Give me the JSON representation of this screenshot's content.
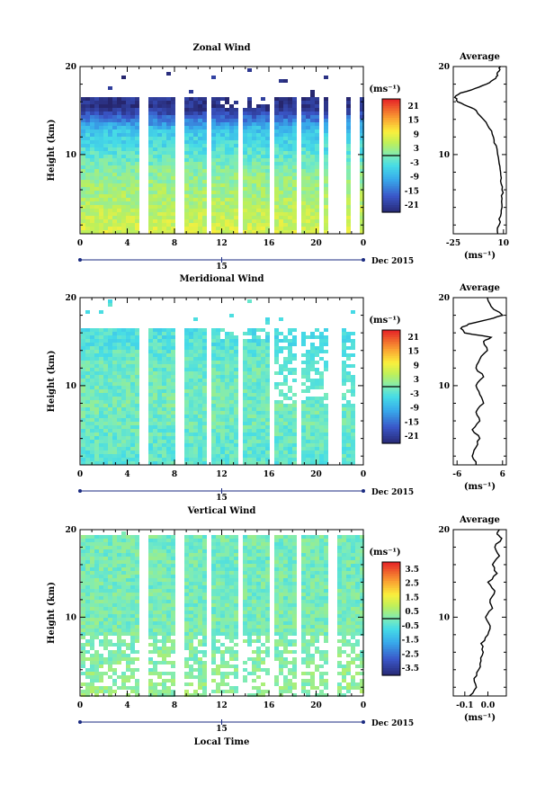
{
  "chart_data": [
    {
      "type": "heatmap",
      "title": "Zonal Wind",
      "ylabel": "Height (km)",
      "xticks": [
        "0",
        "4",
        "8",
        "12",
        "16",
        "20",
        "0"
      ],
      "date_tick": "15",
      "date_label": "Dec 2015",
      "ylim": [
        1,
        20
      ],
      "yticks": [
        "10",
        "20"
      ],
      "colorbar": {
        "unit": "(ms⁻¹)",
        "ticks": [
          "21",
          "15",
          "9",
          "3",
          "-3",
          "-9",
          "-15",
          "-21"
        ],
        "range": [
          -24,
          24
        ]
      },
      "profile": {
        "title": "Average",
        "xlabel": "(ms⁻¹)",
        "xticks": [
          "-25",
          "10"
        ],
        "xlim": [
          -25,
          12
        ],
        "x": [
          6,
          7,
          8,
          9,
          9,
          9,
          8,
          8,
          7,
          6,
          5,
          3,
          0,
          -4,
          -9,
          -15,
          -22,
          -24,
          -20,
          -10,
          -2,
          3,
          6,
          7,
          8
        ],
        "y": [
          1,
          2,
          3,
          4,
          5,
          6,
          7,
          8,
          9,
          10,
          11,
          12,
          13,
          14,
          15,
          15.5,
          16,
          16.5,
          17,
          17.5,
          18,
          18.5,
          19,
          19.5,
          20
        ]
      },
      "field": {
        "low": 8,
        "mid": 2,
        "jet": -22,
        "top": 4
      }
    },
    {
      "type": "heatmap",
      "title": "Meridional Wind",
      "ylabel": "Height (km)",
      "xticks": [
        "0",
        "4",
        "8",
        "12",
        "16",
        "20",
        "0"
      ],
      "date_tick": "15",
      "date_label": "Dec 2015",
      "ylim": [
        1,
        20
      ],
      "yticks": [
        "10",
        "20"
      ],
      "colorbar": {
        "unit": "(ms⁻¹)",
        "ticks": [
          "21",
          "15",
          "9",
          "3",
          "-3",
          "-9",
          "-15",
          "-21"
        ],
        "range": [
          -24,
          24
        ]
      },
      "profile": {
        "title": "Average",
        "xlabel": "(ms⁻¹)",
        "xticks": [
          "-6",
          "6"
        ],
        "xlim": [
          -7,
          7
        ],
        "x": [
          -1,
          -2,
          -1,
          0,
          -2,
          0,
          -1,
          1,
          0,
          -1,
          1,
          -1,
          0,
          2,
          1,
          3,
          -4,
          -5,
          -3,
          2,
          6,
          3,
          2
        ],
        "y": [
          1,
          2,
          3,
          4,
          5,
          6,
          7,
          8,
          9,
          10,
          11,
          12,
          13,
          14,
          15,
          15.5,
          16,
          16.5,
          17,
          17.5,
          18,
          19,
          20
        ]
      },
      "field": {
        "low": -2,
        "mid": 0,
        "jet": -3,
        "top": 1
      }
    },
    {
      "type": "heatmap",
      "title": "Vertical Wind",
      "ylabel": "Height (km)",
      "xlabel": "Local Time",
      "xticks": [
        "0",
        "4",
        "8",
        "12",
        "16",
        "20",
        "0"
      ],
      "date_tick": "15",
      "date_label": "Dec 2015",
      "ylim": [
        1,
        20
      ],
      "yticks": [
        "10",
        "20"
      ],
      "colorbar": {
        "unit": "(ms⁻¹)",
        "ticks": [
          "3.5",
          "2.5",
          "1.5",
          "0.5",
          "-0.5",
          "-1.5",
          "-2.5",
          "-3.5"
        ],
        "range": [
          -4,
          4
        ]
      },
      "profile": {
        "title": "Average",
        "xlabel": "(ms⁻¹)",
        "xticks": [
          "-0.1",
          "0.0"
        ],
        "xlim": [
          -0.15,
          0.08
        ],
        "x": [
          -0.08,
          -0.05,
          -0.06,
          -0.04,
          -0.03,
          -0.02,
          -0.03,
          0.0,
          0.01,
          -0.01,
          0.02,
          0.01,
          0.03,
          0.0,
          0.04,
          0.02,
          0.05,
          0.03,
          0.06,
          0.04,
          0.05
        ],
        "y": [
          1,
          2,
          3,
          4,
          5,
          6,
          7,
          8,
          9,
          10,
          11,
          12,
          13,
          14,
          15,
          16,
          17,
          18,
          19,
          19.5,
          20
        ]
      },
      "field": {
        "low": 0.4,
        "mid": 0.1,
        "jet": 0.0,
        "top": 0.5
      }
    }
  ]
}
